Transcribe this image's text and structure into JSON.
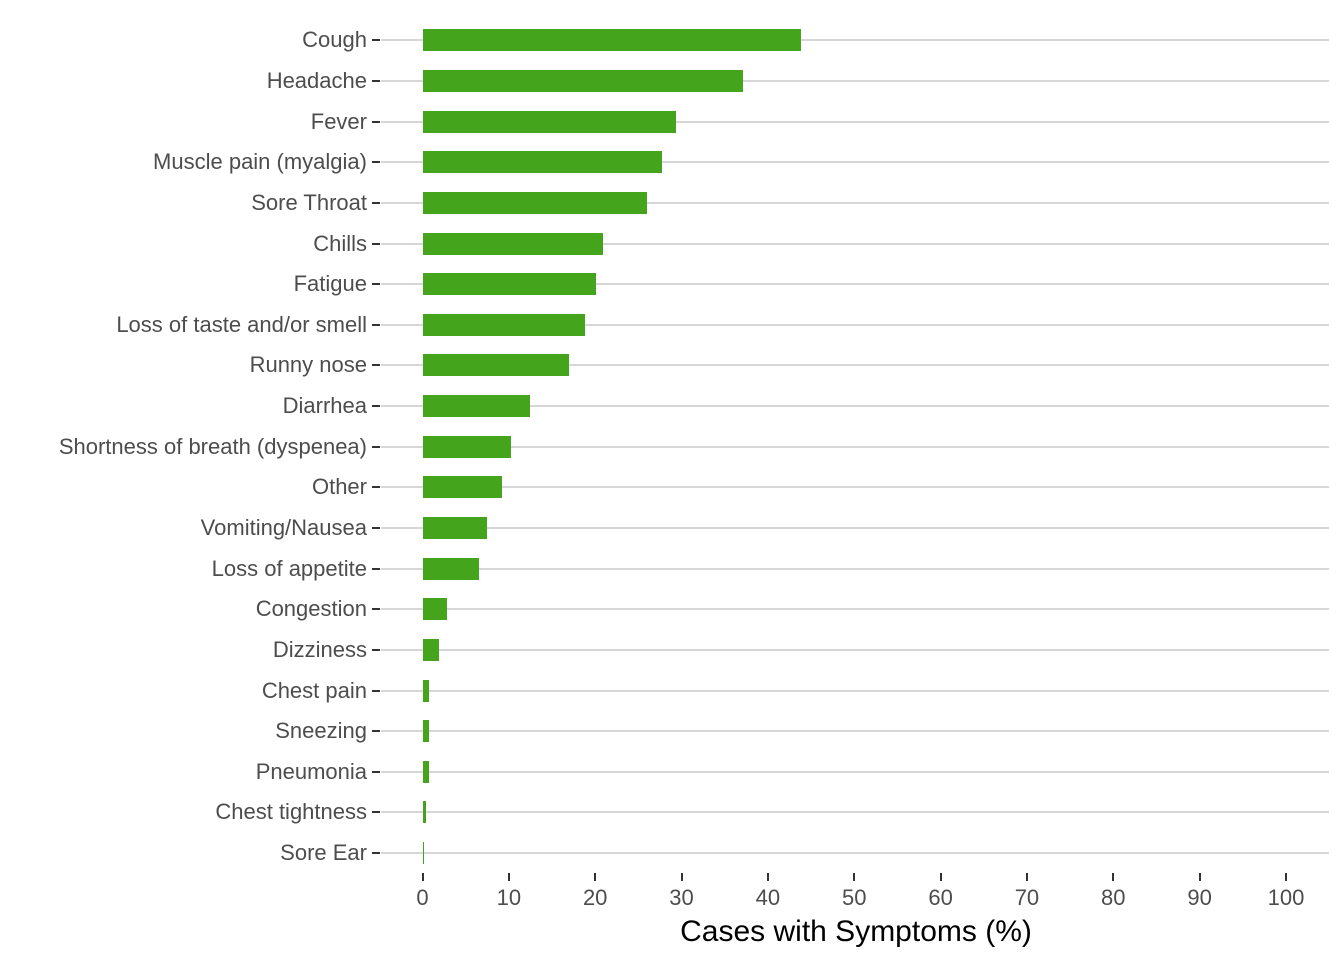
{
  "chart_data": {
    "type": "bar",
    "orientation": "horizontal",
    "title": "",
    "xlabel": "Cases with Symptoms (%)",
    "ylabel": "",
    "xlim": [
      0,
      100
    ],
    "x_ticks": [
      0,
      10,
      20,
      30,
      40,
      50,
      60,
      70,
      80,
      90,
      100
    ],
    "grid": "horizontal major gridlines only, no vertical gridlines",
    "legend": "none",
    "categories": [
      "Cough",
      "Headache",
      "Fever",
      "Muscle pain (myalgia)",
      "Sore Throat",
      "Chills",
      "Fatigue",
      "Loss of taste and/or smell",
      "Runny nose",
      "Diarrhea",
      "Shortness of breath (dyspenea)",
      "Other",
      "Vomiting/Nausea",
      "Loss of appetite",
      "Congestion",
      "Dizziness",
      "Chest pain",
      "Sneezing",
      "Pneumonia",
      "Chest tightness",
      "Sore Ear"
    ],
    "values": [
      43.8,
      37.1,
      29.4,
      27.7,
      26.0,
      20.9,
      20.1,
      18.8,
      17.0,
      12.5,
      10.3,
      9.2,
      7.5,
      6.6,
      2.8,
      1.9,
      0.8,
      0.7,
      0.7,
      0.4,
      0.15
    ],
    "colors": {
      "bar": "#44A51C",
      "gridline": "#D6D6D6",
      "axis_tick": "#333333",
      "tick_label_text": "#4D4D4D",
      "axis_title_text": "#000000",
      "background": "#FFFFFF"
    }
  }
}
